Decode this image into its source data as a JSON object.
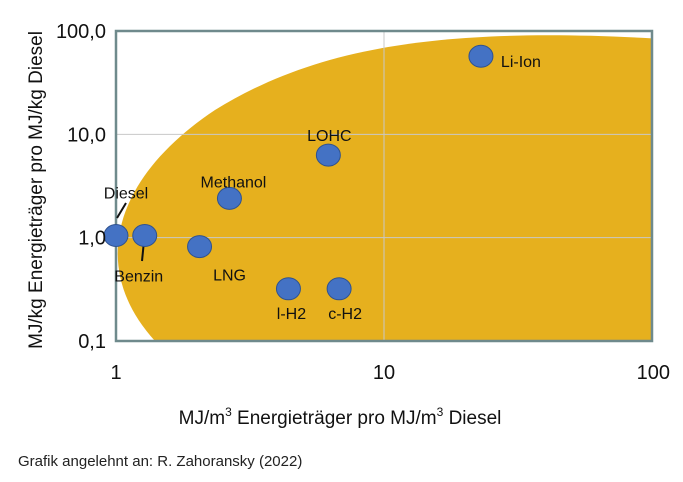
{
  "chart_data": {
    "type": "scatter",
    "title": "",
    "xscale": "log",
    "yscale": "log",
    "xlim": [
      1,
      100
    ],
    "ylim": [
      0.1,
      100
    ],
    "xticks": [
      {
        "value": 1,
        "label": "1"
      },
      {
        "value": 10,
        "label": "10"
      },
      {
        "value": 100,
        "label": "100"
      }
    ],
    "yticks": [
      {
        "value": 0.1,
        "label": "0,1"
      },
      {
        "value": 1,
        "label": "1,0"
      },
      {
        "value": 10,
        "label": "10,0"
      },
      {
        "value": 100,
        "label": "100,0"
      }
    ],
    "xlabel_parts": [
      "MJ/m",
      "3",
      " Energieträger pro MJ/m",
      "3",
      " Diesel"
    ],
    "ylabel": "MJ/kg Energieträger pro MJ/kg Diesel",
    "grid": true,
    "colors": {
      "region": "#E6B01E",
      "point": "#4472C4",
      "point_stroke": "#2F528F",
      "frame": "#6F8A8C",
      "grid": "#C8C8C8"
    },
    "points": [
      {
        "name": "Diesel",
        "x": 1.0,
        "y": 1.05
      },
      {
        "name": "Benzin",
        "x": 1.28,
        "y": 1.05
      },
      {
        "name": "LNG",
        "x": 2.05,
        "y": 0.82
      },
      {
        "name": "Methanol",
        "x": 2.65,
        "y": 2.4
      },
      {
        "name": "LOHC",
        "x": 6.2,
        "y": 6.3
      },
      {
        "name": "l-H2",
        "x": 4.4,
        "y": 0.32
      },
      {
        "name": "c-H2",
        "x": 6.8,
        "y": 0.32
      },
      {
        "name": "Li-Ion",
        "x": 23,
        "y": 57
      }
    ]
  },
  "source_note": "Grafik angelehnt an: R. Zahoransky (2022)"
}
